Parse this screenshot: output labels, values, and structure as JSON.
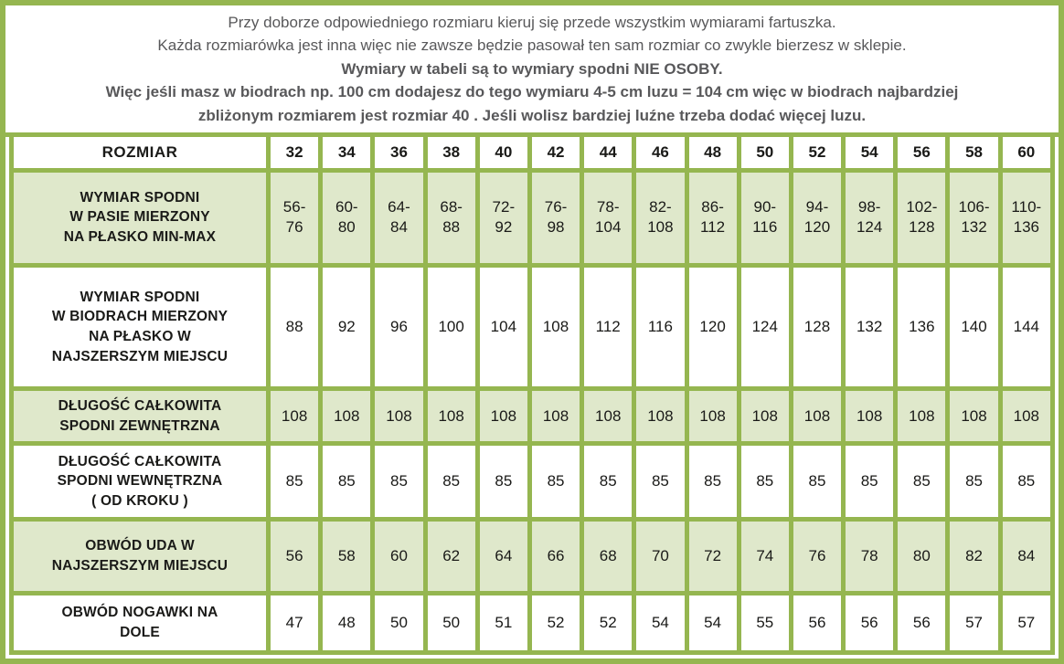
{
  "intro": {
    "lines": [
      {
        "text": "Przy doborze odpowiedniego rozmiaru kieruj się przede wszystkim wymiarami fartuszka.",
        "bold": false
      },
      {
        "text": "Każda rozmiarówka jest inna więc nie zawsze będzie pasował ten sam rozmiar co zwykle bierzesz w sklepie.",
        "bold": false
      },
      {
        "text": "Wymiary w tabeli są to wymiary spodni NIE OSOBY.",
        "bold": true
      },
      {
        "text": "Więc jeśli masz w biodrach np. 100 cm dodajesz do tego wymiaru 4-5 cm luzu = 104 cm więc w biodrach najbardziej",
        "bold": true
      },
      {
        "text": "zbliżonym rozmiarem jest rozmiar 40 . Jeśli wolisz bardziej luźne trzeba dodać więcej luzu.",
        "bold": true
      }
    ]
  },
  "table": {
    "header_label": "ROZMIAR",
    "sizes": [
      "32",
      "34",
      "36",
      "38",
      "40",
      "42",
      "44",
      "46",
      "48",
      "50",
      "52",
      "54",
      "56",
      "58",
      "60"
    ],
    "rows": [
      {
        "label": "WYMIAR SPODNI\nW PASIE MIERZONY\nNA PŁASKO MIN-MAX",
        "shaded": true,
        "values": [
          "56-\n76",
          "60-\n80",
          "64-\n84",
          "68-\n88",
          "72-\n92",
          "76-\n98",
          "78-\n104",
          "82-\n108",
          "86-\n112",
          "90-\n116",
          "94-\n120",
          "98-\n124",
          "102-\n128",
          "106-\n132",
          "110-\n136"
        ]
      },
      {
        "label": "WYMIAR SPODNI\nW BIODRACH MIERZONY\nNA PŁASKO W\nNAJSZERSZYM MIEJSCU",
        "shaded": false,
        "values": [
          "88",
          "92",
          "96",
          "100",
          "104",
          "108",
          "112",
          "116",
          "120",
          "124",
          "128",
          "132",
          "136",
          "140",
          "144"
        ]
      },
      {
        "label": "DŁUGOŚĆ CAŁKOWITA\nSPODNI ZEWNĘTRZNA",
        "shaded": true,
        "values": [
          "108",
          "108",
          "108",
          "108",
          "108",
          "108",
          "108",
          "108",
          "108",
          "108",
          "108",
          "108",
          "108",
          "108",
          "108"
        ]
      },
      {
        "label": "DŁUGOŚĆ CAŁKOWITA\nSPODNI WEWNĘTRZNA\n( OD KROKU )",
        "shaded": false,
        "values": [
          "85",
          "85",
          "85",
          "85",
          "85",
          "85",
          "85",
          "85",
          "85",
          "85",
          "85",
          "85",
          "85",
          "85",
          "85"
        ]
      },
      {
        "label": "OBWÓD UDA W\nNAJSZERSZYM MIEJSCU",
        "shaded": true,
        "values": [
          "56",
          "58",
          "60",
          "62",
          "64",
          "66",
          "68",
          "70",
          "72",
          "74",
          "76",
          "78",
          "80",
          "82",
          "84"
        ]
      },
      {
        "label": "OBWÓD NOGAWKI NA\nDOLE",
        "shaded": false,
        "values": [
          "47",
          "48",
          "50",
          "50",
          "51",
          "52",
          "52",
          "54",
          "54",
          "55",
          "56",
          "56",
          "56",
          "57",
          "57"
        ]
      }
    ]
  },
  "colors": {
    "border_green": "#95B650",
    "row_shade_green": "#DFE8CB",
    "intro_text_gray": "#58585A",
    "table_text_black": "#1A1A18"
  }
}
